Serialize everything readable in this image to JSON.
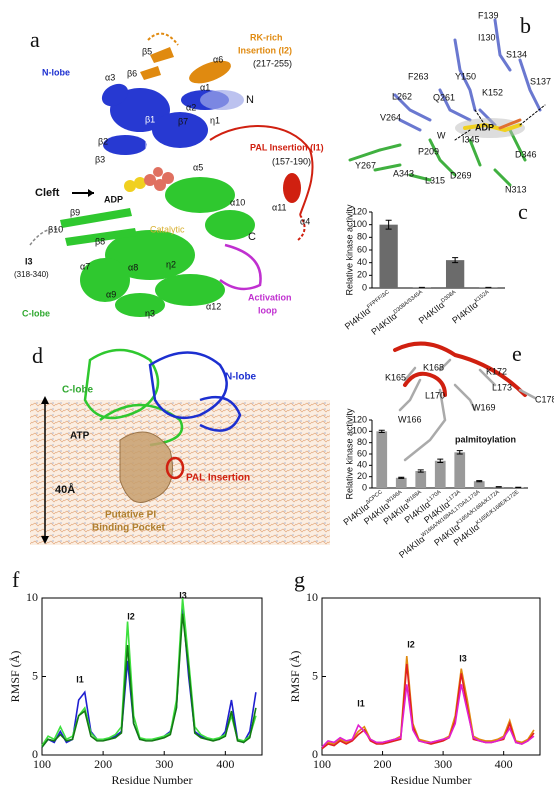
{
  "panels": {
    "a": {
      "label": "a",
      "texts": [
        "N-lobe",
        "RK-rich",
        "Insertion (I2)",
        "(217-255)",
        "β5",
        "α6",
        "β6",
        "α3",
        "α1",
        "N",
        "β1",
        "α2",
        "β2",
        "η1",
        "β7",
        "PAL Insertion (I1)",
        "(157-190)",
        "β3",
        "β4",
        "Cleft",
        "ADP",
        "α5",
        "α10",
        "α11",
        "α4",
        "β9",
        "β8",
        "Catalytic",
        "β10",
        "C",
        "I3",
        "(318-340)",
        "α7",
        "α8",
        "η2",
        "Activation",
        "loop",
        "α9",
        "C-lobe",
        "η3",
        "α12"
      ]
    },
    "b": {
      "label": "b",
      "texts": [
        "F139",
        "I130",
        "S134",
        "F263",
        "Y150",
        "S137",
        "L262",
        "Q261",
        "K152",
        "V264",
        "ADP",
        "I345",
        "W",
        "P209",
        "D346",
        "Y267",
        "A343",
        "L315",
        "D269",
        "N313"
      ]
    },
    "d": {
      "label": "d",
      "texts": [
        "N-lobe",
        "C-lobe",
        "ATP",
        "PAL Insertion",
        "40Å",
        "Putative PI",
        "Binding Pocket"
      ]
    },
    "e": {
      "texts": [
        "K168",
        "K165",
        "K172",
        "L173",
        "L170",
        "C178",
        "W169",
        "W166",
        "palmitoylation"
      ]
    }
  },
  "chart_data": [
    {
      "type": "bar",
      "panel_label": "c",
      "y_label": "Relative kinase activity",
      "categories": [
        "PI4KIIα",
        "PI4KIIα",
        "PI4KIIα",
        "PI4KIIα"
      ],
      "category_superscripts": [
        "FFPFF/ΔC",
        "D308A/S345A",
        "D308A",
        "K152A"
      ],
      "values": [
        100,
        1,
        44,
        1
      ],
      "errors": [
        7,
        0,
        4,
        0
      ],
      "color": "#6b6b6b",
      "ylim": [
        0,
        120
      ],
      "yticks": [
        0,
        20,
        40,
        60,
        80,
        100,
        120
      ]
    },
    {
      "type": "bar",
      "panel_label": "e",
      "y_label": "Relative kinase activity",
      "categories": [
        "PI4KIIα",
        "PI4KIIα",
        "PI4KIIα",
        "PI4KIIα",
        "PI4KIIα",
        "PI4KIIα",
        "PI4KIIα",
        "PI4KIIα"
      ],
      "category_superscripts": [
        "ΔCPCC",
        "W166A",
        "W169A",
        "L170A",
        "L173A",
        "W166A/W169A/L170A/L173A",
        "K165A/K168A/K172A",
        "K165E/K168E/K172E"
      ],
      "values": [
        100,
        18,
        30,
        48,
        63,
        12,
        2,
        1
      ],
      "errors": [
        2,
        1,
        2,
        3,
        3,
        1,
        0.5,
        0.3
      ],
      "color": "#9a9a9a",
      "ylim": [
        0,
        120
      ],
      "yticks": [
        0,
        20,
        40,
        60,
        80,
        100,
        120
      ]
    },
    {
      "type": "line",
      "panel_label": "f",
      "x_label": "Residue Number",
      "y_label": "RMSF (Å)",
      "annotations": [
        "I1",
        "I2",
        "I3"
      ],
      "xlim": [
        100,
        460
      ],
      "xticks": [
        100,
        200,
        300,
        400
      ],
      "ylim": [
        0,
        10
      ],
      "yticks": [
        0,
        5,
        10
      ],
      "x": [
        100,
        110,
        120,
        130,
        140,
        150,
        160,
        170,
        180,
        190,
        200,
        210,
        220,
        230,
        240,
        250,
        260,
        270,
        280,
        290,
        300,
        310,
        320,
        330,
        340,
        350,
        360,
        370,
        380,
        390,
        400,
        410,
        420,
        430,
        440,
        450
      ],
      "series": [
        {
          "color": "#1f1fd0",
          "values": [
            0.5,
            1,
            0.8,
            1.5,
            0.8,
            1,
            3.5,
            4,
            1.5,
            1,
            1,
            1,
            1.2,
            1.5,
            6,
            2,
            1,
            1,
            1,
            1,
            1.2,
            1.5,
            3,
            9.5,
            5,
            1.5,
            1.2,
            1,
            1,
            1,
            1.5,
            3.5,
            1,
            0.8,
            1.5,
            4
          ]
        },
        {
          "color": "#3ee03e",
          "values": [
            0.6,
            1.2,
            1,
            1.8,
            1,
            1.2,
            2.5,
            3,
            1.4,
            1,
            1,
            1.1,
            1.3,
            1.8,
            8.5,
            2.5,
            1.1,
            1,
            1,
            1.1,
            1.2,
            1.4,
            3.5,
            10,
            6,
            1.8,
            1.3,
            1.1,
            1,
            1.1,
            1.3,
            2.5,
            1,
            0.9,
            1.2,
            2.5
          ]
        },
        {
          "color": "#137a13",
          "values": [
            0.5,
            1,
            0.9,
            1.3,
            0.9,
            1,
            2.5,
            2.8,
            1.2,
            0.9,
            0.9,
            1,
            1.1,
            1.4,
            7,
            2,
            1,
            0.9,
            0.9,
            1,
            1.1,
            1.3,
            3,
            9,
            5.5,
            1.4,
            1.1,
            1,
            0.9,
            1,
            1.2,
            2.8,
            0.9,
            0.8,
            1.1,
            3
          ]
        }
      ]
    },
    {
      "type": "line",
      "panel_label": "g",
      "x_label": "Residue Number",
      "y_label": "RMSF (Å)",
      "annotations": [
        "I1",
        "I2",
        "I3"
      ],
      "xlim": [
        100,
        460
      ],
      "xticks": [
        100,
        200,
        300,
        400
      ],
      "ylim": [
        0,
        10
      ],
      "yticks": [
        0,
        5,
        10
      ],
      "x": [
        100,
        110,
        120,
        130,
        140,
        150,
        160,
        170,
        180,
        190,
        200,
        210,
        220,
        230,
        240,
        250,
        260,
        270,
        280,
        290,
        300,
        310,
        320,
        330,
        340,
        350,
        360,
        370,
        380,
        390,
        400,
        410,
        420,
        430,
        440,
        450
      ],
      "series": [
        {
          "color": "#e08a10",
          "values": [
            0.5,
            0.8,
            0.7,
            1,
            0.8,
            1,
            1.5,
            1.8,
            1,
            0.8,
            0.8,
            0.9,
            1,
            1.2,
            6.3,
            2,
            1,
            0.9,
            0.8,
            0.9,
            1,
            1.2,
            2.5,
            5.5,
            3.5,
            1.2,
            1,
            0.9,
            0.9,
            1,
            1.2,
            2.2,
            0.9,
            0.8,
            1,
            1.6
          ]
        },
        {
          "color": "#e02020",
          "values": [
            0.4,
            0.7,
            0.6,
            0.9,
            0.7,
            0.9,
            1.3,
            1.6,
            0.9,
            0.7,
            0.7,
            0.8,
            0.9,
            1,
            5.8,
            1.8,
            0.9,
            0.8,
            0.7,
            0.8,
            0.9,
            1.1,
            2.2,
            5.2,
            3,
            1,
            0.9,
            0.8,
            0.8,
            0.9,
            1,
            2,
            0.8,
            0.7,
            0.9,
            1.4
          ]
        },
        {
          "color": "#e020d0",
          "values": [
            0.5,
            0.9,
            0.8,
            1.1,
            0.9,
            1,
            1.9,
            1.5,
            1,
            0.8,
            0.8,
            0.9,
            1,
            1.1,
            4.5,
            1.6,
            0.9,
            0.8,
            0.8,
            0.9,
            1,
            1.1,
            2,
            4.5,
            2.8,
            1.1,
            0.9,
            0.8,
            0.8,
            0.9,
            1.1,
            1.7,
            0.8,
            0.7,
            0.9,
            1.2
          ]
        }
      ]
    }
  ]
}
